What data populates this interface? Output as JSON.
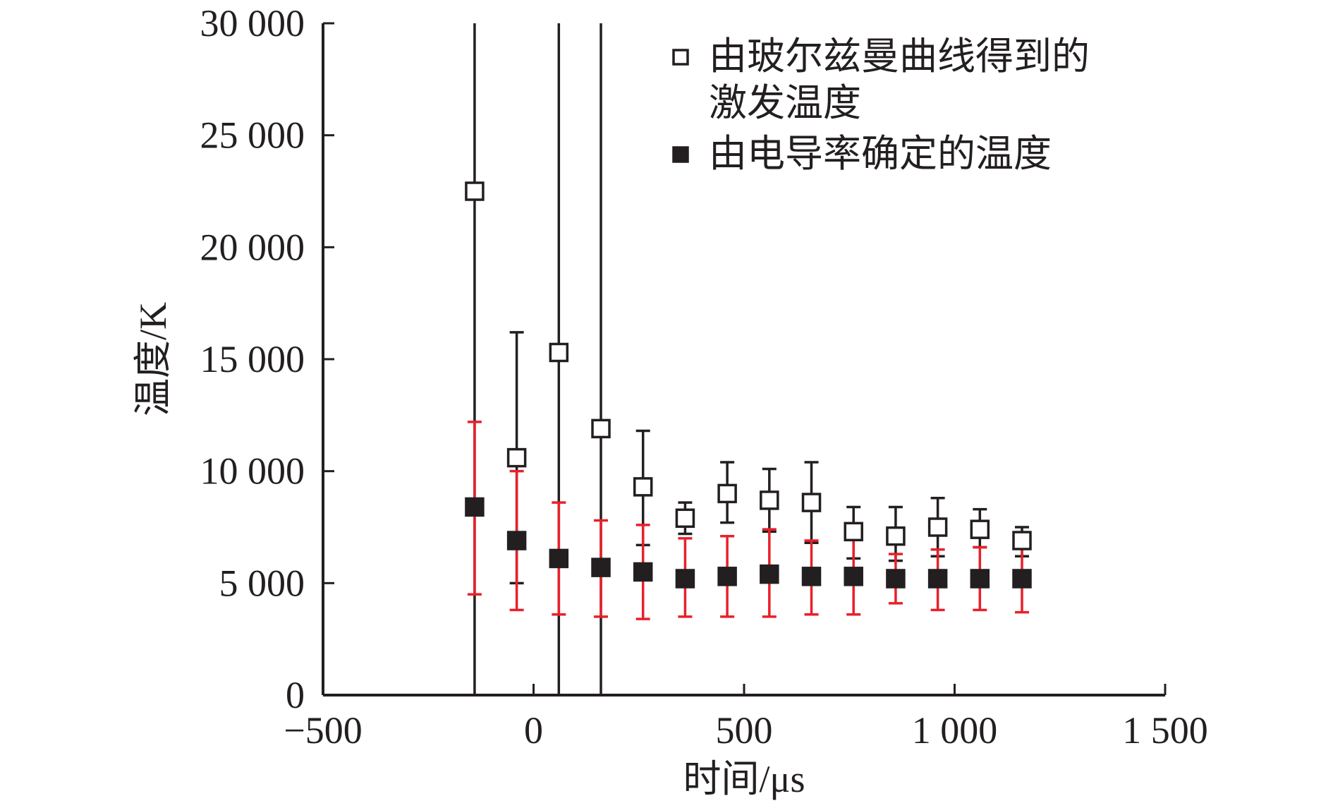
{
  "chart_data": {
    "type": "scatter",
    "xlabel": "时间/μs",
    "ylabel": "温度/K",
    "xlim": [
      -500,
      1500
    ],
    "ylim": [
      0,
      30000
    ],
    "x_ticks": [
      -500,
      0,
      500,
      1000,
      1500
    ],
    "x_tick_labels": [
      "−500",
      "0",
      "500",
      "1 000",
      "1 500"
    ],
    "y_ticks": [
      0,
      5000,
      10000,
      15000,
      20000,
      25000,
      30000
    ],
    "y_tick_labels": [
      "0",
      "5 000",
      "10 000",
      "15 000",
      "20 000",
      "25 000",
      "30 000"
    ],
    "grid": false,
    "legend_position": "top-right",
    "series": [
      {
        "name": "由玻尔兹曼曲线得到的激发温度",
        "legend_lines": [
          "由玻尔兹曼曲线得到的",
          "激发温度"
        ],
        "marker": "open-square",
        "color": "#231f20",
        "points": [
          {
            "x": -140,
            "y": 22500,
            "y_low": 0,
            "y_high": 30000
          },
          {
            "x": -40,
            "y": 10600,
            "y_low": 5000,
            "y_high": 16200
          },
          {
            "x": 60,
            "y": 15300,
            "y_low": 0,
            "y_high": 30000
          },
          {
            "x": 160,
            "y": 11900,
            "y_low": 0,
            "y_high": 30000
          },
          {
            "x": 260,
            "y": 9300,
            "y_low": 6700,
            "y_high": 11800
          },
          {
            "x": 360,
            "y": 7900,
            "y_low": 7200,
            "y_high": 8600
          },
          {
            "x": 460,
            "y": 9000,
            "y_low": 7700,
            "y_high": 10400
          },
          {
            "x": 560,
            "y": 8700,
            "y_low": 7300,
            "y_high": 10100
          },
          {
            "x": 660,
            "y": 8600,
            "y_low": 6800,
            "y_high": 10400
          },
          {
            "x": 760,
            "y": 7300,
            "y_low": 6100,
            "y_high": 8400
          },
          {
            "x": 860,
            "y": 7100,
            "y_low": 6000,
            "y_high": 8400
          },
          {
            "x": 960,
            "y": 7500,
            "y_low": 6200,
            "y_high": 8800
          },
          {
            "x": 1060,
            "y": 7400,
            "y_low": 6600,
            "y_high": 8300
          },
          {
            "x": 1160,
            "y": 6900,
            "y_low": 6200,
            "y_high": 7500
          }
        ]
      },
      {
        "name": "由电导率确定的温度",
        "legend_lines": [
          "由电导率确定的温度"
        ],
        "marker": "filled-square",
        "color": "#231f20",
        "error_color": "#e8202a",
        "points": [
          {
            "x": -140,
            "y": 8400,
            "y_low": 4500,
            "y_high": 12200
          },
          {
            "x": -40,
            "y": 6900,
            "y_low": 3800,
            "y_high": 10000
          },
          {
            "x": 60,
            "y": 6100,
            "y_low": 3600,
            "y_high": 8600
          },
          {
            "x": 160,
            "y": 5700,
            "y_low": 3500,
            "y_high": 7800
          },
          {
            "x": 260,
            "y": 5500,
            "y_low": 3400,
            "y_high": 7600
          },
          {
            "x": 360,
            "y": 5200,
            "y_low": 3500,
            "y_high": 7000
          },
          {
            "x": 460,
            "y": 5300,
            "y_low": 3500,
            "y_high": 7100
          },
          {
            "x": 560,
            "y": 5400,
            "y_low": 3500,
            "y_high": 7400
          },
          {
            "x": 660,
            "y": 5300,
            "y_low": 3600,
            "y_high": 6900
          },
          {
            "x": 760,
            "y": 5300,
            "y_low": 3600,
            "y_high": 7000
          },
          {
            "x": 860,
            "y": 5200,
            "y_low": 4100,
            "y_high": 6300
          },
          {
            "x": 960,
            "y": 5200,
            "y_low": 3800,
            "y_high": 6500
          },
          {
            "x": 1060,
            "y": 5200,
            "y_low": 3800,
            "y_high": 6600
          },
          {
            "x": 1160,
            "y": 5200,
            "y_low": 3700,
            "y_high": 6700
          }
        ]
      }
    ]
  }
}
